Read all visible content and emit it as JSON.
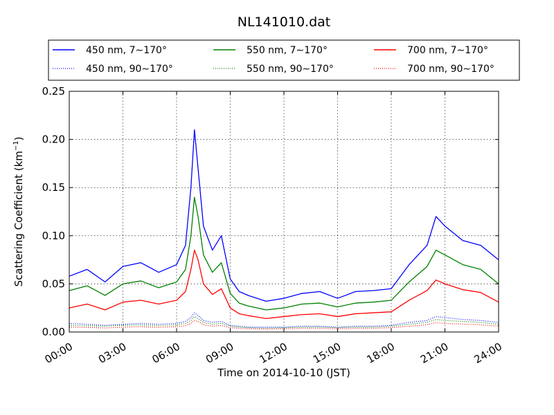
{
  "chart_data": {
    "type": "line",
    "title": "NL141010.dat",
    "xlabel": "Time on 2014-10-10 (JST)",
    "ylabel_main": "Scattering Coefficient (km",
    "ylabel_sup": "−1",
    "ylabel_end": ")",
    "xlim_hours": [
      0,
      24
    ],
    "ylim": [
      0,
      0.25
    ],
    "grid": true,
    "legend_position": "top, above plot (3 columns)",
    "x_ticks": [
      "00:00",
      "03:00",
      "06:00",
      "09:00",
      "12:00",
      "15:00",
      "18:00",
      "21:00",
      "24:00"
    ],
    "y_ticks": [
      "0.00",
      "0.05",
      "0.10",
      "0.15",
      "0.20",
      "0.25"
    ],
    "x_hours": [
      0,
      1,
      2,
      3,
      4,
      5,
      6,
      6.5,
      6.8,
      7,
      7.2,
      7.5,
      8,
      8.5,
      9,
      9.5,
      10,
      11,
      12,
      13,
      14,
      15,
      16,
      17,
      18,
      19,
      20,
      20.5,
      21,
      22,
      23,
      24
    ],
    "series": [
      {
        "name": "450 nm, 7∼170°",
        "color": "#0000ff",
        "style": "solid",
        "values": [
          0.058,
          0.065,
          0.052,
          0.068,
          0.072,
          0.062,
          0.07,
          0.09,
          0.15,
          0.21,
          0.17,
          0.11,
          0.085,
          0.1,
          0.055,
          0.042,
          0.038,
          0.032,
          0.035,
          0.04,
          0.042,
          0.035,
          0.042,
          0.043,
          0.045,
          0.07,
          0.09,
          0.12,
          0.11,
          0.095,
          0.09,
          0.075
        ]
      },
      {
        "name": "550 nm, 7∼170°",
        "color": "#008000",
        "style": "solid",
        "values": [
          0.043,
          0.048,
          0.038,
          0.05,
          0.053,
          0.046,
          0.052,
          0.065,
          0.1,
          0.14,
          0.12,
          0.08,
          0.062,
          0.072,
          0.04,
          0.03,
          0.027,
          0.023,
          0.025,
          0.029,
          0.03,
          0.026,
          0.03,
          0.031,
          0.033,
          0.052,
          0.068,
          0.085,
          0.08,
          0.07,
          0.065,
          0.05
        ]
      },
      {
        "name": "700 nm, 7∼170°",
        "color": "#ff0000",
        "style": "solid",
        "values": [
          0.025,
          0.029,
          0.023,
          0.031,
          0.033,
          0.029,
          0.033,
          0.042,
          0.065,
          0.085,
          0.075,
          0.05,
          0.039,
          0.045,
          0.025,
          0.019,
          0.017,
          0.014,
          0.016,
          0.018,
          0.019,
          0.016,
          0.019,
          0.02,
          0.021,
          0.033,
          0.043,
          0.054,
          0.05,
          0.044,
          0.041,
          0.031
        ]
      },
      {
        "name": "450 nm, 90∼170°",
        "color": "#0000ff",
        "style": "dotted",
        "values": [
          0.009,
          0.008,
          0.007,
          0.008,
          0.009,
          0.008,
          0.009,
          0.011,
          0.015,
          0.02,
          0.017,
          0.012,
          0.01,
          0.011,
          0.007,
          0.006,
          0.005,
          0.005,
          0.005,
          0.006,
          0.006,
          0.005,
          0.006,
          0.006,
          0.007,
          0.01,
          0.012,
          0.016,
          0.015,
          0.013,
          0.012,
          0.01
        ]
      },
      {
        "name": "550 nm, 90∼170°",
        "color": "#008000",
        "style": "dotted",
        "values": [
          0.007,
          0.0065,
          0.006,
          0.007,
          0.0075,
          0.0065,
          0.0075,
          0.009,
          0.012,
          0.016,
          0.014,
          0.01,
          0.008,
          0.009,
          0.006,
          0.005,
          0.0045,
          0.004,
          0.0045,
          0.005,
          0.005,
          0.0045,
          0.005,
          0.005,
          0.006,
          0.008,
          0.01,
          0.013,
          0.012,
          0.011,
          0.01,
          0.008
        ]
      },
      {
        "name": "700 nm, 90∼170°",
        "color": "#ff0000",
        "style": "dotted",
        "values": [
          0.005,
          0.0048,
          0.0042,
          0.005,
          0.0055,
          0.0048,
          0.0055,
          0.0065,
          0.009,
          0.012,
          0.011,
          0.0075,
          0.006,
          0.0068,
          0.0045,
          0.0038,
          0.0034,
          0.003,
          0.0034,
          0.0038,
          0.0038,
          0.0034,
          0.0038,
          0.0038,
          0.0045,
          0.006,
          0.0075,
          0.0098,
          0.009,
          0.0082,
          0.0075,
          0.006
        ]
      }
    ]
  }
}
